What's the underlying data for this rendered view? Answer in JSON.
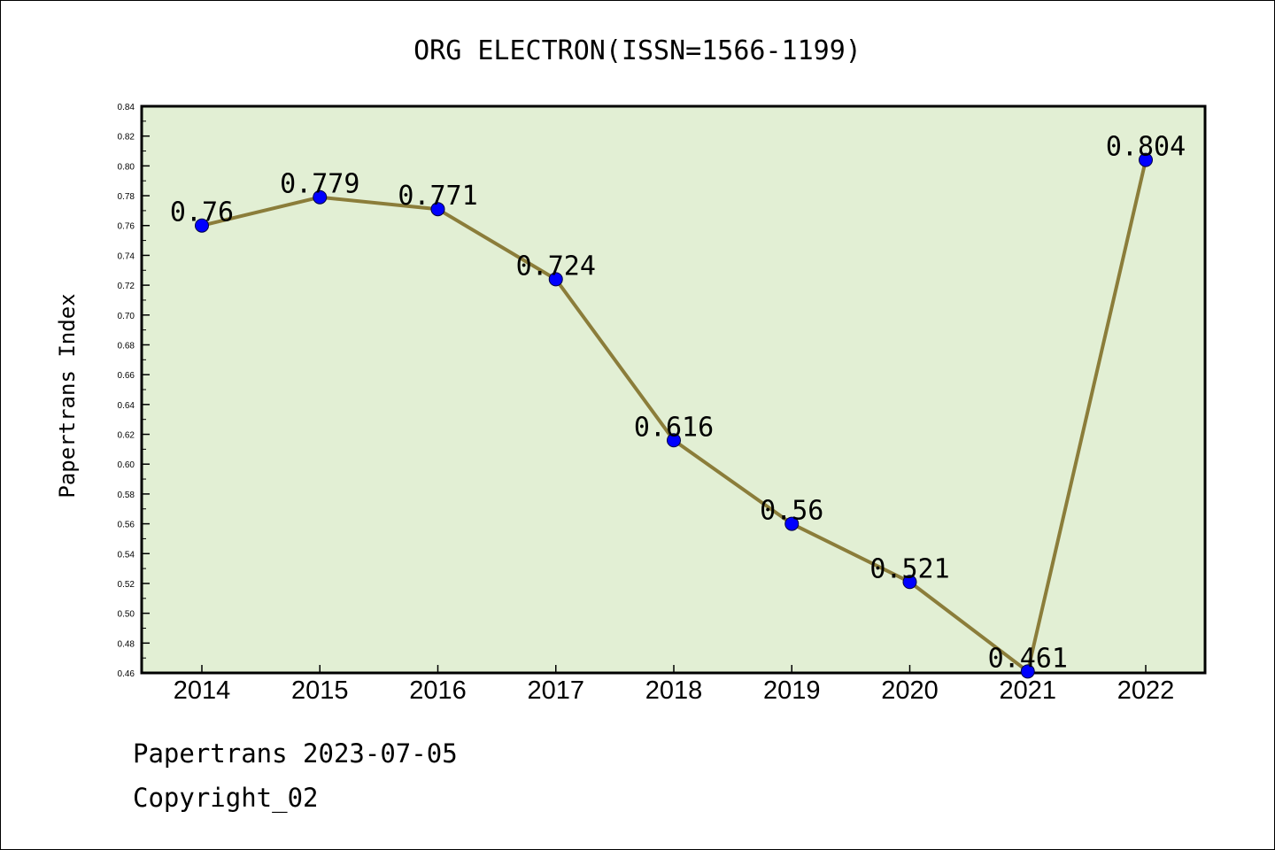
{
  "chart_data": {
    "type": "line",
    "title": "ORG ELECTRON(ISSN=1566-1199)",
    "xlabel": "",
    "ylabel": "Papertrans Index",
    "x": [
      "2014",
      "2015",
      "2016",
      "2017",
      "2018",
      "2019",
      "2020",
      "2021",
      "2022"
    ],
    "values": [
      0.76,
      0.779,
      0.771,
      0.724,
      0.616,
      0.56,
      0.521,
      0.461,
      0.804
    ],
    "data_labels": [
      "0.76",
      "0.779",
      "0.771",
      "0.724",
      "0.616",
      "0.56",
      "0.521",
      "0.461",
      "0.804"
    ],
    "ylim": [
      0.46,
      0.84
    ],
    "y_ticks": [
      "0.46",
      "0.48",
      "0.50",
      "0.52",
      "0.54",
      "0.56",
      "0.58",
      "0.60",
      "0.62",
      "0.64",
      "0.66",
      "0.68",
      "0.70",
      "0.72",
      "0.74",
      "0.76",
      "0.78",
      "0.80",
      "0.82",
      "0.84"
    ],
    "grid": false,
    "colors": {
      "plot_background": "#e2efd4",
      "line": "#8b7d3a",
      "marker": "#0000ff"
    }
  },
  "footer": {
    "line1": "Papertrans 2023-07-05",
    "line2": "Copyright_02"
  }
}
